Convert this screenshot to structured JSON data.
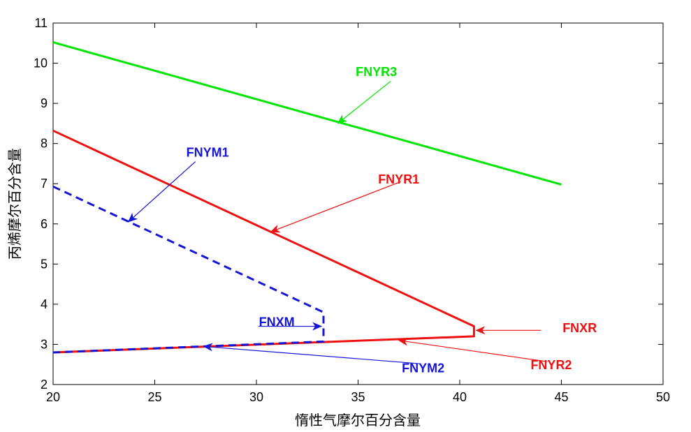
{
  "chart_data": {
    "type": "line",
    "xlabel": "惰性气摩尔百分含量",
    "ylabel": "丙烯摩尔百分含量",
    "xlim": [
      20,
      50
    ],
    "ylim": [
      2,
      11
    ],
    "xticks": [
      20,
      25,
      30,
      35,
      40,
      45,
      50
    ],
    "yticks": [
      2,
      3,
      4,
      5,
      6,
      7,
      8,
      9,
      10,
      11
    ],
    "grid": false,
    "colors": {
      "green": "#00e600",
      "red": "#ee1111",
      "blue": "#1515d6"
    },
    "lines": [
      {
        "color": "green",
        "style": "solid",
        "points": [
          [
            20,
            10.52
          ],
          [
            45,
            6.98
          ]
        ]
      },
      {
        "color": "red",
        "style": "solid",
        "points": [
          [
            20,
            8.32
          ],
          [
            40.7,
            3.45
          ],
          [
            40.7,
            3.2
          ],
          [
            20,
            2.8
          ]
        ]
      },
      {
        "color": "blue",
        "style": "dashed",
        "points": [
          [
            20,
            6.93
          ],
          [
            33.3,
            3.8
          ],
          [
            33.3,
            3.07
          ],
          [
            20,
            2.8
          ]
        ]
      }
    ],
    "annotations": [
      {
        "text": "FNYR3",
        "color": "green",
        "text_at": [
          35.9,
          9.68
        ],
        "arrow_from": [
          36.6,
          9.55
        ],
        "arrow_to": [
          34.0,
          8.5
        ]
      },
      {
        "text": "FNYR1",
        "color": "red",
        "text_at": [
          37.0,
          7.0
        ],
        "arrow_from": [
          37.1,
          7.05
        ],
        "arrow_to": [
          30.7,
          5.8
        ]
      },
      {
        "text": "FNYM1",
        "color": "blue",
        "text_at": [
          27.6,
          7.67
        ],
        "arrow_from": [
          27.0,
          7.55
        ],
        "arrow_to": [
          23.7,
          6.05
        ]
      },
      {
        "text": "FNXM",
        "color": "blue",
        "text_at": [
          31.0,
          3.45
        ],
        "arrow_from": [
          30.1,
          3.45
        ],
        "arrow_to": [
          33.2,
          3.45
        ]
      },
      {
        "text": "FNXR",
        "color": "red",
        "text_at": [
          45.9,
          3.3
        ],
        "arrow_from": [
          44.0,
          3.35
        ],
        "arrow_to": [
          40.8,
          3.35
        ]
      },
      {
        "text": "FNYR2",
        "color": "red",
        "text_at": [
          44.5,
          2.38
        ],
        "arrow_from": [
          44.3,
          2.57
        ],
        "arrow_to": [
          37.0,
          3.1
        ]
      },
      {
        "text": "FNYM2",
        "color": "blue",
        "text_at": [
          38.2,
          2.3
        ],
        "arrow_from": [
          38.0,
          2.52
        ],
        "arrow_to": [
          27.4,
          2.95
        ]
      }
    ]
  }
}
